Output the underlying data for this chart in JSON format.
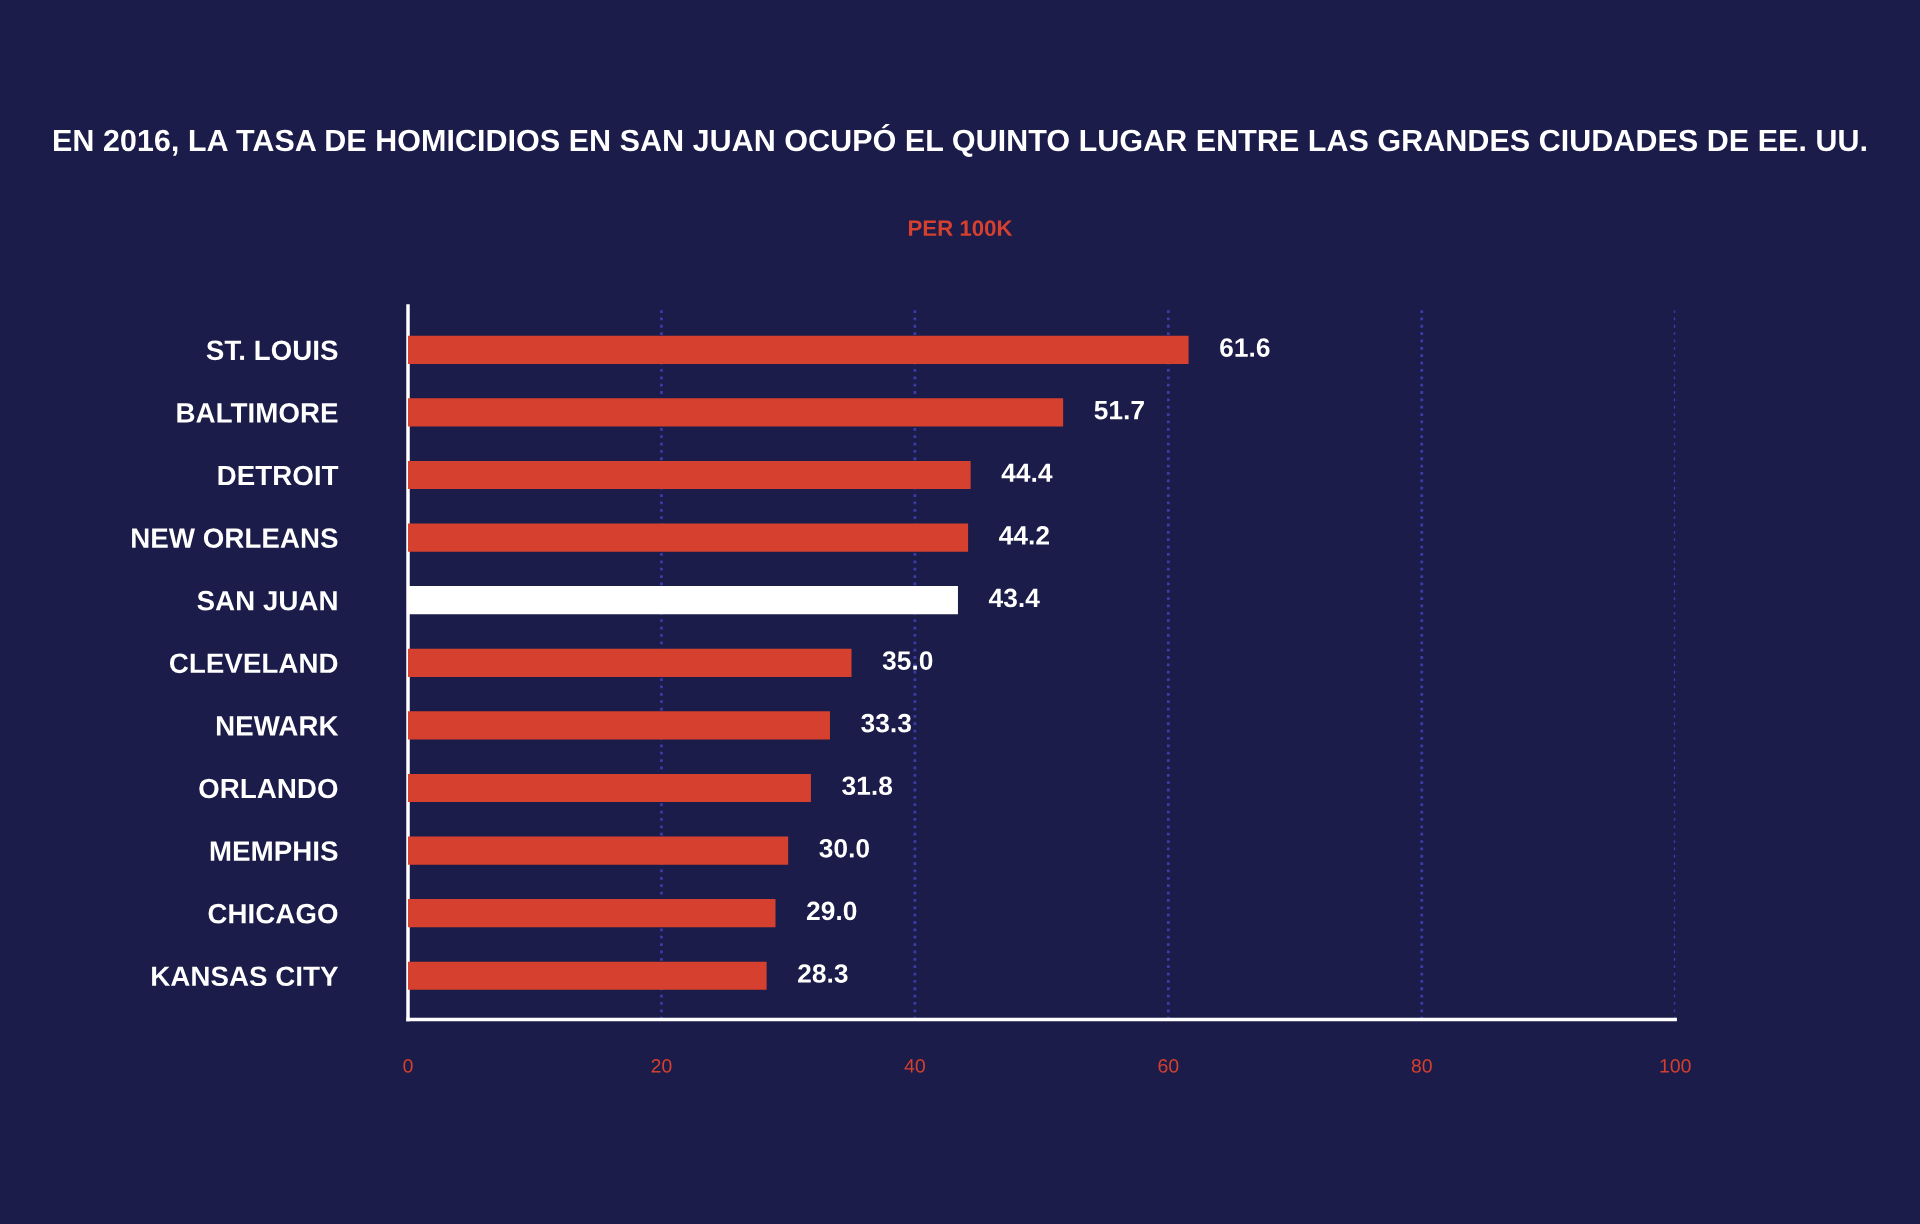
{
  "chart_data": {
    "type": "bar",
    "orientation": "horizontal",
    "title": "EN 2016, LA TASA DE HOMICIDIOS EN SAN JUAN OCUPÓ EL QUINTO LUGAR ENTRE LAS GRANDES CIUDADES DE EE. UU.",
    "subtitle": "PER 100K",
    "categories": [
      "ST. LOUIS",
      "BALTIMORE",
      "DETROIT",
      "NEW ORLEANS",
      "SAN JUAN",
      "CLEVELAND",
      "NEWARK",
      "ORLANDO",
      "MEMPHIS",
      "CHICAGO",
      "KANSAS CITY"
    ],
    "values": [
      61.6,
      51.7,
      44.4,
      44.2,
      43.4,
      35.0,
      33.3,
      31.8,
      30.0,
      29.0,
      28.3
    ],
    "value_labels": [
      "61.6",
      "51.7",
      "44.4",
      "44.2",
      "43.4",
      "35.0",
      "33.3",
      "31.8",
      "30.0",
      "29.0",
      "28.3"
    ],
    "colors": [
      "#d6402e",
      "#d6402e",
      "#d6402e",
      "#d6402e",
      "#ffffff",
      "#d6402e",
      "#d6402e",
      "#d6402e",
      "#d6402e",
      "#d6402e",
      "#d6402e"
    ],
    "xlim": [
      0,
      100
    ],
    "xticks": [
      0,
      20,
      40,
      60,
      80,
      100
    ],
    "grid": "x",
    "legend": false
  }
}
